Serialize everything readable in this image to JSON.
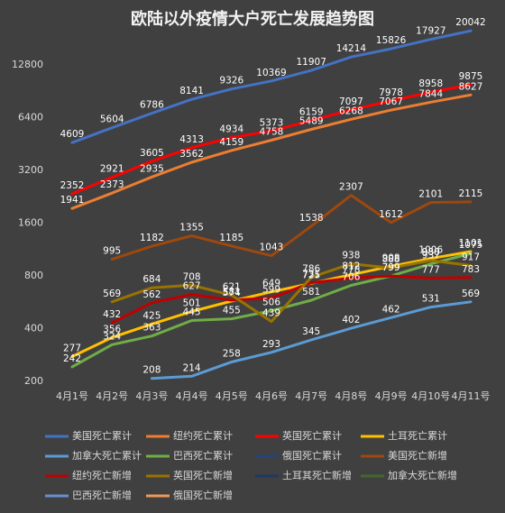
{
  "chart_data": {
    "type": "line",
    "title": "欧陆以外疫情大户死亡发展趋势图",
    "categories": [
      "4月1号",
      "4月2号",
      "4月3号",
      "4月4号",
      "4月5号",
      "4月6号",
      "4月7号",
      "4月8号",
      "4月9号",
      "4月10号",
      "4月11号"
    ],
    "log_scale": true,
    "ylim": [
      200,
      25600
    ],
    "yticks": [
      200,
      400,
      800,
      1600,
      3200,
      6400,
      12800
    ],
    "grid": false,
    "legend": "bottom",
    "series": [
      {
        "name": "美国死亡累计",
        "color": "#4472c4",
        "values": [
          4609,
          5604,
          6786,
          8141,
          9326,
          10369,
          11907,
          14214,
          15826,
          17927,
          20042
        ]
      },
      {
        "name": "纽约死亡累计",
        "color": "#ed7d31",
        "values": [
          1941,
          2373,
          2935,
          3562,
          4159,
          4758,
          5489,
          6268,
          7067,
          7844,
          8627
        ]
      },
      {
        "name": "英国死亡累计",
        "color": "#ff0000",
        "values": [
          2352,
          2921,
          3605,
          4313,
          4934,
          5373,
          6159,
          7097,
          7978,
          8958,
          9875
        ]
      },
      {
        "name": "土耳死亡累计",
        "color": "#ffc000",
        "values": [
          277,
          356,
          425,
          501,
          574,
          649,
          725,
          812,
          908,
          1006,
          1101
        ]
      },
      {
        "name": "加拿大死亡累计",
        "color": "#5b9bd5",
        "values": [
          null,
          null,
          208,
          214,
          258,
          293,
          345,
          402,
          462,
          531,
          569
        ]
      },
      {
        "name": "巴西死亡累计",
        "color": "#70ad47",
        "values": [
          242,
          324,
          363,
          445,
          455,
          506,
          581,
          706,
          799,
          937,
          1075
        ]
      },
      {
        "name": "俄国死亡累计",
        "color": "#264478",
        "values": [
          null,
          null,
          null,
          null,
          null,
          null,
          null,
          null,
          null,
          null,
          null
        ]
      },
      {
        "name": "美国死亡新增",
        "color": "#9e480e",
        "values": [
          null,
          995,
          1182,
          1355,
          1185,
          1043,
          1538,
          2307,
          1612,
          2101,
          2115
        ]
      },
      {
        "name": "纽约死亡新增",
        "color": "#c00000",
        "values": [
          null,
          432,
          562,
          627,
          581,
          599,
          731,
          778,
          799,
          777,
          783
        ]
      },
      {
        "name": "英国死亡新增",
        "color": "#997300",
        "values": [
          null,
          569,
          684,
          708,
          621,
          439,
          786,
          938,
          888,
          980,
          917
        ]
      },
      {
        "name": "土耳其死亡新增",
        "color": "#1f3864",
        "values": [
          null,
          null,
          null,
          null,
          null,
          null,
          null,
          null,
          null,
          null,
          null
        ]
      },
      {
        "name": "加拿大死亡新增",
        "color": "#43682b",
        "values": [
          null,
          null,
          null,
          null,
          null,
          null,
          null,
          null,
          null,
          null,
          null
        ]
      },
      {
        "name": "巴西死亡新增",
        "color": "#698ed0",
        "values": [
          null,
          null,
          null,
          null,
          null,
          null,
          null,
          null,
          null,
          null,
          null
        ]
      },
      {
        "name": "俄国死亡新增",
        "color": "#f1975a",
        "values": [
          null,
          null,
          null,
          null,
          null,
          null,
          null,
          null,
          null,
          null,
          null
        ]
      }
    ]
  }
}
